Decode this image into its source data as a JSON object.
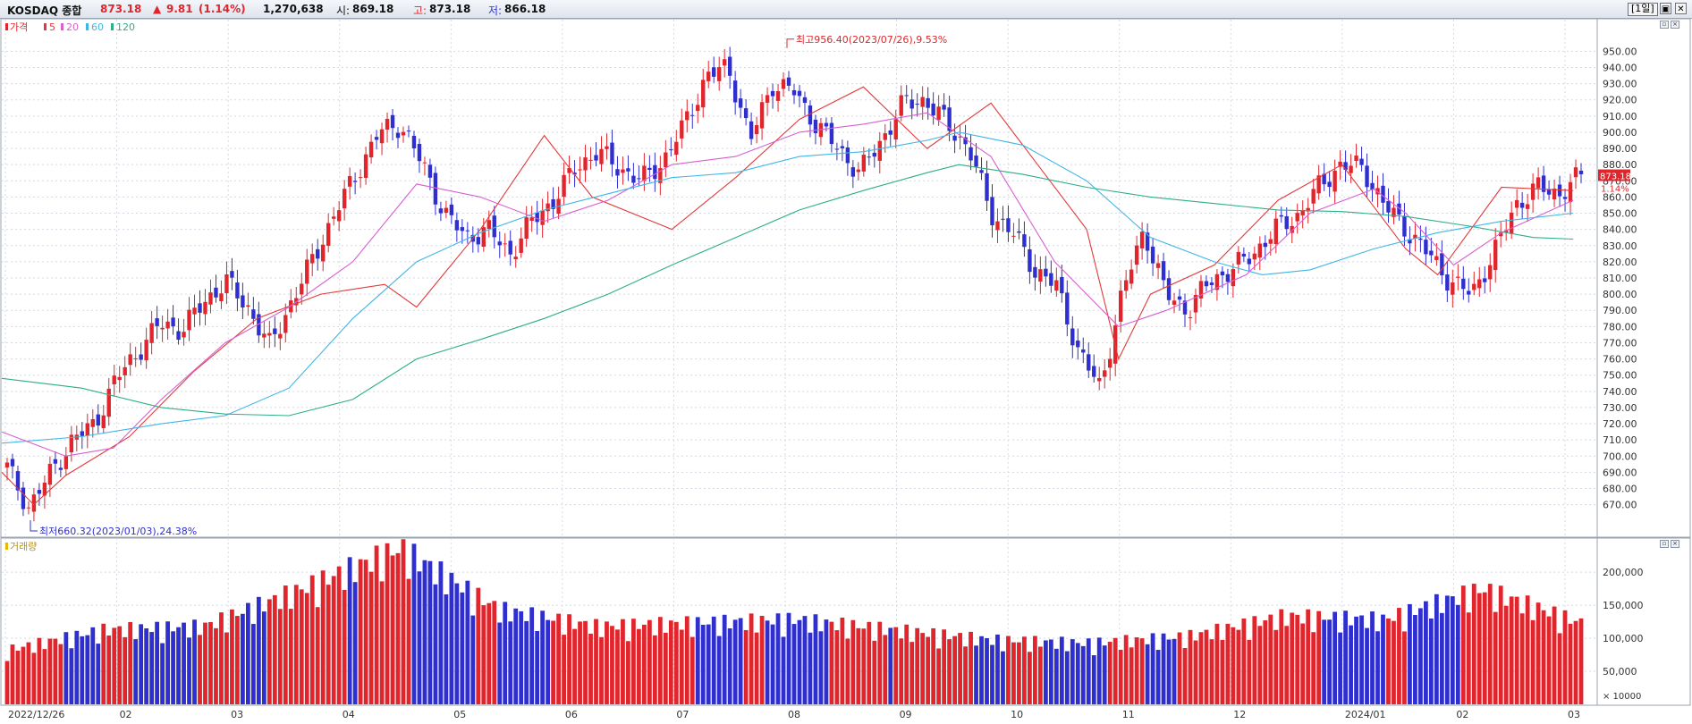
{
  "header": {
    "symbol": "KOSDAQ 종합",
    "price": "873.18",
    "change_arrow": "▲",
    "change": "9.81",
    "change_pct": "(1.14%)",
    "volume": "1,270,638",
    "open_label": "시:",
    "open": "869.18",
    "high_label": "고:",
    "high": "873.18",
    "low_label": "저:",
    "low": "866.18",
    "period": "[1일]"
  },
  "price_panel": {
    "legend": {
      "price": "가격",
      "ma5": "5",
      "ma20": "20",
      "ma60": "60",
      "ma120": "120"
    },
    "last_price_tag": "873.18",
    "last_change_tag": "1.14%",
    "high_annotation": "최고956.40(2023/07/26),9.53%",
    "low_annotation": "최저660.32(2023/01/03),24.38%"
  },
  "volume_panel": {
    "legend": "거래량",
    "unit_label": "× 10000"
  },
  "colors": {
    "up": "#e0262c",
    "down": "#2f2fd0",
    "ma5": "#e23a3a",
    "ma20": "#d95fd0",
    "ma60": "#3fb6e6",
    "ma120": "#2eae86",
    "grid": "#d4dae3",
    "header_price": "#e0262c",
    "header_low": "#2f2fd0"
  },
  "chart_data": {
    "type": "candlestick",
    "title": "KOSDAQ 종합",
    "x_ticks": [
      "2022/12/26",
      "02",
      "03",
      "04",
      "05",
      "06",
      "07",
      "08",
      "09",
      "10",
      "11",
      "12",
      "2024/01",
      "02",
      "03"
    ],
    "y_ticks_price": [
      "670.00",
      "680.00",
      "690.00",
      "700.00",
      "710.00",
      "720.00",
      "730.00",
      "740.00",
      "750.00",
      "760.00",
      "770.00",
      "780.00",
      "790.00",
      "800.00",
      "810.00",
      "820.00",
      "830.00",
      "840.00",
      "850.00",
      "860.00",
      "870.00",
      "880.00",
      "890.00",
      "900.00",
      "910.00",
      "920.00",
      "930.00",
      "940.00",
      "950.00"
    ],
    "y_ticks_volume": [
      "50,000",
      "100,000",
      "150,000",
      "200,000"
    ],
    "ylim_price": [
      656,
      964
    ],
    "ylim_volume": [
      0,
      230000
    ],
    "price_close_series": [
      {
        "date": "2022-12-26",
        "close": 693
      },
      {
        "date": "2023-01-03",
        "close": 668
      },
      {
        "date": "2023-01-10",
        "close": 690
      },
      {
        "date": "2023-01-20",
        "close": 710
      },
      {
        "date": "2023-01-31",
        "close": 720
      },
      {
        "date": "2023-02-06",
        "close": 748
      },
      {
        "date": "2023-02-10",
        "close": 765
      },
      {
        "date": "2023-02-17",
        "close": 782
      },
      {
        "date": "2023-02-28",
        "close": 778
      },
      {
        "date": "2023-03-06",
        "close": 795
      },
      {
        "date": "2023-03-10",
        "close": 808
      },
      {
        "date": "2023-03-15",
        "close": 792
      },
      {
        "date": "2023-03-17",
        "close": 768
      },
      {
        "date": "2023-03-23",
        "close": 795
      },
      {
        "date": "2023-03-31",
        "close": 822
      },
      {
        "date": "2023-04-07",
        "close": 850
      },
      {
        "date": "2023-04-13",
        "close": 875
      },
      {
        "date": "2023-04-20",
        "close": 900
      },
      {
        "date": "2023-04-25",
        "close": 905
      },
      {
        "date": "2023-04-27",
        "close": 880
      },
      {
        "date": "2023-05-03",
        "close": 850
      },
      {
        "date": "2023-05-10",
        "close": 835
      },
      {
        "date": "2023-05-17",
        "close": 840
      },
      {
        "date": "2023-05-24",
        "close": 825
      },
      {
        "date": "2023-06-01",
        "close": 845
      },
      {
        "date": "2023-06-09",
        "close": 858
      },
      {
        "date": "2023-06-16",
        "close": 878
      },
      {
        "date": "2023-06-23",
        "close": 888
      },
      {
        "date": "2023-06-30",
        "close": 878
      },
      {
        "date": "2023-07-05",
        "close": 870
      },
      {
        "date": "2023-07-12",
        "close": 882
      },
      {
        "date": "2023-07-18",
        "close": 905
      },
      {
        "date": "2023-07-25",
        "close": 935
      },
      {
        "date": "2023-07-26",
        "close": 940
      },
      {
        "date": "2023-07-28",
        "close": 895
      },
      {
        "date": "2023-08-02",
        "close": 930
      },
      {
        "date": "2023-08-04",
        "close": 925
      },
      {
        "date": "2023-08-10",
        "close": 905
      },
      {
        "date": "2023-08-17",
        "close": 890
      },
      {
        "date": "2023-08-23",
        "close": 875
      },
      {
        "date": "2023-08-31",
        "close": 895
      },
      {
        "date": "2023-09-07",
        "close": 918
      },
      {
        "date": "2023-09-14",
        "close": 920
      },
      {
        "date": "2023-09-20",
        "close": 905
      },
      {
        "date": "2023-09-27",
        "close": 890
      },
      {
        "date": "2023-10-05",
        "close": 850
      },
      {
        "date": "2023-10-11",
        "close": 838
      },
      {
        "date": "2023-10-16",
        "close": 815
      },
      {
        "date": "2023-10-20",
        "close": 805
      },
      {
        "date": "2023-10-26",
        "close": 765
      },
      {
        "date": "2023-10-31",
        "close": 742
      },
      {
        "date": "2023-11-03",
        "close": 800
      },
      {
        "date": "2023-11-06",
        "close": 840
      },
      {
        "date": "2023-11-10",
        "close": 800
      },
      {
        "date": "2023-11-15",
        "close": 790
      },
      {
        "date": "2023-11-22",
        "close": 808
      },
      {
        "date": "2023-11-29",
        "close": 815
      },
      {
        "date": "2023-12-07",
        "close": 825
      },
      {
        "date": "2023-12-15",
        "close": 840
      },
      {
        "date": "2023-12-21",
        "close": 848
      },
      {
        "date": "2023-12-28",
        "close": 866
      },
      {
        "date": "2024-01-04",
        "close": 880
      },
      {
        "date": "2024-01-10",
        "close": 878
      },
      {
        "date": "2024-01-17",
        "close": 855
      },
      {
        "date": "2024-01-24",
        "close": 840
      },
      {
        "date": "2024-01-31",
        "close": 825
      },
      {
        "date": "2024-02-05",
        "close": 808
      },
      {
        "date": "2024-02-07",
        "close": 800
      },
      {
        "date": "2024-02-14",
        "close": 825
      },
      {
        "date": "2024-02-20",
        "close": 855
      },
      {
        "date": "2024-02-26",
        "close": 866
      },
      {
        "date": "2024-03-04",
        "close": 862
      },
      {
        "date": "2024-03-08",
        "close": 873.18
      }
    ],
    "ma_series": [
      {
        "name": "5",
        "values": [
          [
            0,
            690
          ],
          [
            0.02,
            670
          ],
          [
            0.04,
            688
          ],
          [
            0.08,
            712
          ],
          [
            0.12,
            752
          ],
          [
            0.16,
            785
          ],
          [
            0.2,
            800
          ],
          [
            0.24,
            806
          ],
          [
            0.26,
            792
          ],
          [
            0.3,
            840
          ],
          [
            0.34,
            898
          ],
          [
            0.37,
            860
          ],
          [
            0.42,
            840
          ],
          [
            0.46,
            872
          ],
          [
            0.5,
            908
          ],
          [
            0.54,
            928
          ],
          [
            0.58,
            890
          ],
          [
            0.62,
            918
          ],
          [
            0.68,
            840
          ],
          [
            0.7,
            760
          ],
          [
            0.72,
            800
          ],
          [
            0.76,
            818
          ],
          [
            0.8,
            858
          ],
          [
            0.84,
            880
          ],
          [
            0.88,
            828
          ],
          [
            0.9,
            812
          ],
          [
            0.94,
            866
          ],
          [
            0.985,
            864
          ]
        ]
      },
      {
        "name": "20",
        "values": [
          [
            0,
            715
          ],
          [
            0.04,
            700
          ],
          [
            0.07,
            705
          ],
          [
            0.1,
            735
          ],
          [
            0.14,
            770
          ],
          [
            0.18,
            792
          ],
          [
            0.22,
            820
          ],
          [
            0.26,
            868
          ],
          [
            0.3,
            860
          ],
          [
            0.34,
            845
          ],
          [
            0.38,
            858
          ],
          [
            0.42,
            880
          ],
          [
            0.46,
            885
          ],
          [
            0.5,
            900
          ],
          [
            0.54,
            905
          ],
          [
            0.58,
            912
          ],
          [
            0.62,
            885
          ],
          [
            0.66,
            820
          ],
          [
            0.7,
            780
          ],
          [
            0.73,
            790
          ],
          [
            0.78,
            812
          ],
          [
            0.82,
            850
          ],
          [
            0.86,
            865
          ],
          [
            0.88,
            850
          ],
          [
            0.91,
            818
          ],
          [
            0.94,
            838
          ],
          [
            0.985,
            858
          ]
        ]
      },
      {
        "name": "60",
        "values": [
          [
            0,
            708
          ],
          [
            0.05,
            712
          ],
          [
            0.1,
            720
          ],
          [
            0.14,
            725
          ],
          [
            0.18,
            742
          ],
          [
            0.22,
            785
          ],
          [
            0.26,
            820
          ],
          [
            0.3,
            838
          ],
          [
            0.34,
            852
          ],
          [
            0.38,
            862
          ],
          [
            0.42,
            872
          ],
          [
            0.46,
            875
          ],
          [
            0.5,
            885
          ],
          [
            0.54,
            888
          ],
          [
            0.58,
            895
          ],
          [
            0.6,
            900
          ],
          [
            0.64,
            892
          ],
          [
            0.68,
            870
          ],
          [
            0.72,
            835
          ],
          [
            0.76,
            820
          ],
          [
            0.79,
            812
          ],
          [
            0.82,
            815
          ],
          [
            0.86,
            828
          ],
          [
            0.9,
            838
          ],
          [
            0.94,
            845
          ],
          [
            0.985,
            850
          ]
        ]
      },
      {
        "name": "120",
        "values": [
          [
            0,
            748
          ],
          [
            0.05,
            742
          ],
          [
            0.1,
            730
          ],
          [
            0.14,
            726
          ],
          [
            0.18,
            725
          ],
          [
            0.22,
            735
          ],
          [
            0.26,
            760
          ],
          [
            0.3,
            772
          ],
          [
            0.34,
            785
          ],
          [
            0.38,
            800
          ],
          [
            0.42,
            818
          ],
          [
            0.46,
            835
          ],
          [
            0.5,
            852
          ],
          [
            0.54,
            864
          ],
          [
            0.58,
            875
          ],
          [
            0.6,
            880
          ],
          [
            0.64,
            874
          ],
          [
            0.68,
            866
          ],
          [
            0.72,
            860
          ],
          [
            0.76,
            856
          ],
          [
            0.8,
            852
          ],
          [
            0.84,
            851
          ],
          [
            0.88,
            848
          ],
          [
            0.92,
            842
          ],
          [
            0.96,
            835
          ],
          [
            0.985,
            834
          ]
        ]
      }
    ],
    "volume_series": [
      {
        "date": "2023-01",
        "value": 80000
      },
      {
        "date": "2023-02",
        "value": 110000
      },
      {
        "date": "2023-03",
        "value": 115000
      },
      {
        "date": "2023-04",
        "value": 170000
      },
      {
        "date": "2023-04-26",
        "value": 230000
      },
      {
        "date": "2023-05",
        "value": 140000
      },
      {
        "date": "2023-06",
        "value": 115000
      },
      {
        "date": "2023-07",
        "value": 120000
      },
      {
        "date": "2023-08",
        "value": 125000
      },
      {
        "date": "2023-09",
        "value": 110000
      },
      {
        "date": "2023-10",
        "value": 95000
      },
      {
        "date": "2023-11",
        "value": 90000
      },
      {
        "date": "2023-12",
        "value": 100000
      },
      {
        "date": "2024-01",
        "value": 130000
      },
      {
        "date": "2024-02",
        "value": 125000
      },
      {
        "date": "2024-02-23",
        "value": 170000
      },
      {
        "date": "2024-03",
        "value": 120000
      }
    ],
    "last_price": 873.18,
    "high": {
      "value": 956.4,
      "date": "2023/07/26",
      "pct": 9.53
    },
    "low": {
      "value": 660.32,
      "date": "2023/01/03",
      "pct": 24.38
    },
    "grid": true,
    "legend_position": "top-left"
  }
}
